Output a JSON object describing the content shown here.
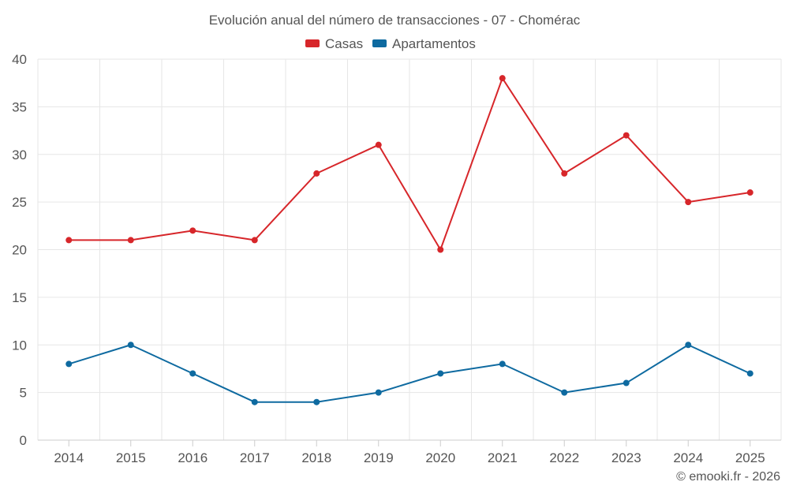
{
  "chart_data": {
    "type": "line",
    "title": "Evolución anual del número de transacciones - 07 - Chomérac",
    "categories": [
      "2014",
      "2015",
      "2016",
      "2017",
      "2018",
      "2019",
      "2020",
      "2021",
      "2022",
      "2023",
      "2024",
      "2025"
    ],
    "series": [
      {
        "name": "Casas",
        "color": "#d7262a",
        "values": [
          21,
          21,
          22,
          21,
          28,
          31,
          20,
          38,
          28,
          32,
          25,
          26
        ]
      },
      {
        "name": "Apartamentos",
        "color": "#0e6aa0",
        "values": [
          8,
          10,
          7,
          4,
          4,
          5,
          7,
          8,
          5,
          6,
          10,
          7
        ]
      }
    ],
    "ylim": [
      0,
      40
    ],
    "yticks": [
      0,
      5,
      10,
      15,
      20,
      25,
      30,
      35,
      40
    ],
    "xlabel": "",
    "ylabel": "",
    "legend": "top-center",
    "grid": true
  },
  "credit": "© emooki.fr - 2026"
}
